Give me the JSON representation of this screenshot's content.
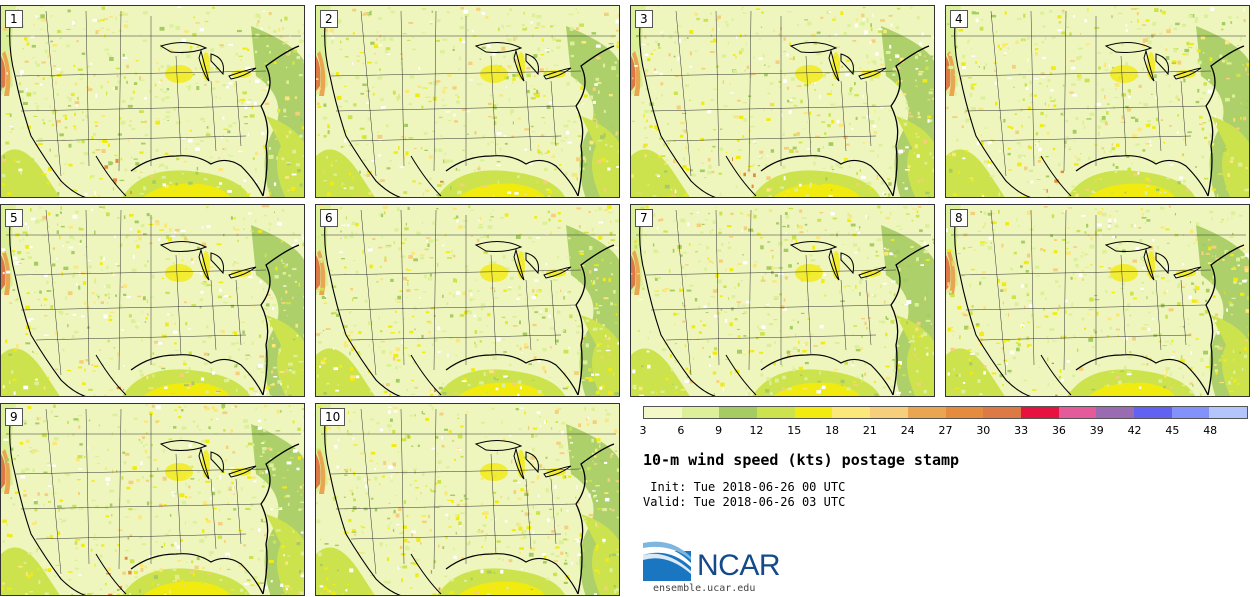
{
  "panels": [
    {
      "label": "1"
    },
    {
      "label": "2"
    },
    {
      "label": "3"
    },
    {
      "label": "4"
    },
    {
      "label": "5"
    },
    {
      "label": "6"
    },
    {
      "label": "7"
    },
    {
      "label": "8"
    },
    {
      "label": "9"
    },
    {
      "label": "10"
    }
  ],
  "colorbar": {
    "colors": [
      "#f3f8c6",
      "#dcf09a",
      "#a5cc62",
      "#cde34d",
      "#f2eb0f",
      "#fbe77a",
      "#f6cf7c",
      "#eaa551",
      "#e48b3d",
      "#dd7945",
      "#e8123f",
      "#e45a9a",
      "#9a6bb0",
      "#6262f2",
      "#8391fb",
      "#b3c6fb"
    ],
    "ticks": [
      "3",
      "6",
      "9",
      "12",
      "15",
      "18",
      "21",
      "24",
      "27",
      "30",
      "33",
      "36",
      "39",
      "42",
      "45",
      "48"
    ]
  },
  "title": "10-m wind speed (kts) postage stamp",
  "init": " Init: Tue 2018-06-26 00 UTC",
  "valid": "Valid: Tue 2018-06-26 03 UTC",
  "logo": {
    "text": "NCAR",
    "colors": {
      "blue": "#1a76c0",
      "navy": "#154a8a"
    }
  },
  "site": "ensemble.ucar.edu"
}
